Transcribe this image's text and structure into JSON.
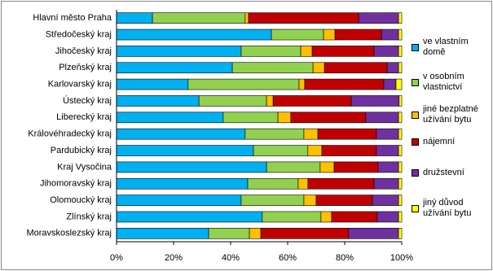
{
  "chart_data": {
    "type": "stacked-bar-horizontal",
    "categories": [
      "Hlavní město Praha",
      "Středočeský kraj",
      "Jihočeský kraj",
      "Plzeňský kraj",
      "Karlovarský kraj",
      "Ústecký kraj",
      "Liberecký kraj",
      "Královéhradecký kraj",
      "Pardubický kraj",
      "Kraj Vysočina",
      "Jihomoravský kraj",
      "Olomoucký kraj",
      "Zlínský kraj",
      "Moravskoslezský kraj"
    ],
    "series": [
      {
        "name": "ve vlastním domě",
        "color": "#00b0f0",
        "values": [
          12.6,
          54.3,
          43.7,
          40.6,
          25.1,
          28.9,
          37.4,
          45.1,
          48.0,
          52.6,
          46.0,
          43.7,
          51.1,
          32.3
        ]
      },
      {
        "name": "v osobním vlastnictví",
        "color": "#92d050",
        "values": [
          32.5,
          18.3,
          20.9,
          28.3,
          38.9,
          23.7,
          19.2,
          20.6,
          19.1,
          18.8,
          17.7,
          22.0,
          20.6,
          14.3
        ]
      },
      {
        "name": "jiné bezplatné užívání bytu",
        "color": "#ffc000",
        "values": [
          1.2,
          4.0,
          4.0,
          4.0,
          2.0,
          2.3,
          4.5,
          4.9,
          4.9,
          4.9,
          3.4,
          4.3,
          3.7,
          4.0
        ]
      },
      {
        "name": "nájemní",
        "color": "#c00000",
        "values": [
          38.6,
          16.3,
          21.7,
          22.0,
          27.7,
          27.4,
          26.3,
          20.5,
          19.1,
          15.4,
          23.2,
          19.7,
          16.0,
          30.8
        ]
      },
      {
        "name": "družstevní",
        "color": "#7030a0",
        "values": [
          14.0,
          6.0,
          8.6,
          4.0,
          4.3,
          16.8,
          11.5,
          7.8,
          7.8,
          7.2,
          8.6,
          9.2,
          7.5,
          17.5
        ]
      },
      {
        "name": "jiný důvod užívání bytu",
        "color": "#ffff00",
        "values": [
          1.1,
          1.1,
          1.1,
          1.1,
          2.0,
          0.9,
          1.1,
          1.1,
          1.1,
          1.1,
          1.1,
          1.1,
          1.1,
          1.1
        ]
      }
    ],
    "xlim": [
      0,
      100
    ],
    "xticks": [
      {
        "value": 0,
        "label": "0%"
      },
      {
        "value": 20,
        "label": "20%"
      },
      {
        "value": 40,
        "label": "40%"
      },
      {
        "value": 60,
        "label": "60%"
      },
      {
        "value": 80,
        "label": "80%"
      },
      {
        "value": 100,
        "label": "100%"
      }
    ],
    "legend": "right"
  }
}
